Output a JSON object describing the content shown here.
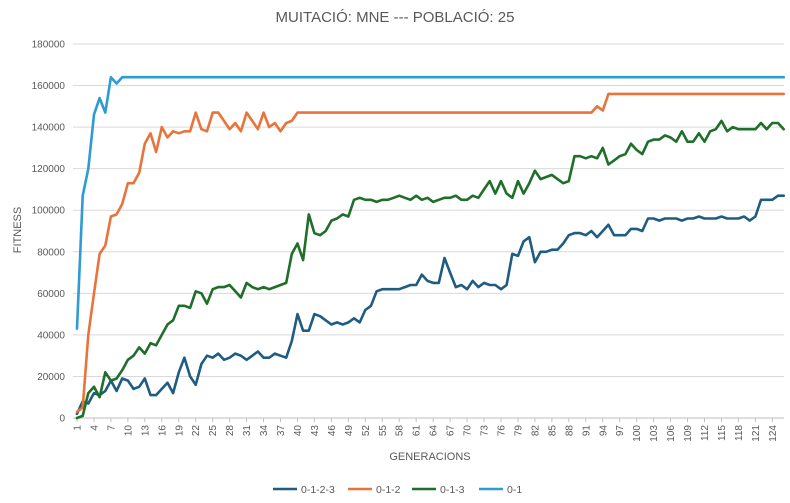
{
  "chart_data": {
    "type": "line",
    "title": "MUITACIÓ: MNE  ---  POBLACIÓ: 25",
    "xlabel": "GENERACIONS",
    "ylabel": "FITNESS",
    "ylim": [
      0,
      180000
    ],
    "yticks": [
      0,
      20000,
      40000,
      60000,
      80000,
      100000,
      120000,
      140000,
      160000,
      180000
    ],
    "ytick_labels": [
      "0",
      "20000",
      "40000",
      "60000",
      "80000",
      "100000",
      "120000",
      "140000",
      "160000",
      "180000"
    ],
    "xlim": [
      1,
      125
    ],
    "xticks": [
      1,
      4,
      7,
      10,
      13,
      16,
      19,
      22,
      25,
      28,
      31,
      34,
      37,
      40,
      43,
      46,
      49,
      52,
      55,
      58,
      61,
      64,
      67,
      70,
      73,
      76,
      79,
      82,
      85,
      88,
      91,
      94,
      97,
      100,
      103,
      106,
      109,
      112,
      115,
      118,
      121,
      124
    ],
    "grid": "horizontal",
    "legend_position": "bottom",
    "series": [
      {
        "name": "0-1-2-3",
        "color": "#1f5c82",
        "points": [
          [
            1,
            2000
          ],
          [
            2,
            8000
          ],
          [
            3,
            7000
          ],
          [
            4,
            12000
          ],
          [
            5,
            11000
          ],
          [
            6,
            13000
          ],
          [
            7,
            18000
          ],
          [
            8,
            13000
          ],
          [
            9,
            19000
          ],
          [
            10,
            18000
          ],
          [
            11,
            14000
          ],
          [
            12,
            15000
          ],
          [
            13,
            19000
          ],
          [
            14,
            11000
          ],
          [
            15,
            11000
          ],
          [
            16,
            14000
          ],
          [
            17,
            17000
          ],
          [
            18,
            12000
          ],
          [
            19,
            22000
          ],
          [
            20,
            29000
          ],
          [
            21,
            20000
          ],
          [
            22,
            16000
          ],
          [
            23,
            26000
          ],
          [
            24,
            30000
          ],
          [
            25,
            29000
          ],
          [
            26,
            31000
          ],
          [
            27,
            28000
          ],
          [
            28,
            29000
          ],
          [
            29,
            31000
          ],
          [
            30,
            30000
          ],
          [
            31,
            28000
          ],
          [
            32,
            30000
          ],
          [
            33,
            32000
          ],
          [
            34,
            29000
          ],
          [
            35,
            29000
          ],
          [
            36,
            31000
          ],
          [
            37,
            30000
          ],
          [
            38,
            29000
          ],
          [
            39,
            37000
          ],
          [
            40,
            50000
          ],
          [
            41,
            42000
          ],
          [
            42,
            42000
          ],
          [
            43,
            50000
          ],
          [
            44,
            49000
          ],
          [
            45,
            47000
          ],
          [
            46,
            45000
          ],
          [
            47,
            46000
          ],
          [
            48,
            45000
          ],
          [
            49,
            46000
          ],
          [
            50,
            48000
          ],
          [
            51,
            46000
          ],
          [
            52,
            52000
          ],
          [
            53,
            54000
          ],
          [
            54,
            61000
          ],
          [
            55,
            62000
          ],
          [
            56,
            62000
          ],
          [
            57,
            62000
          ],
          [
            58,
            62000
          ],
          [
            59,
            63000
          ],
          [
            60,
            64000
          ],
          [
            61,
            64000
          ],
          [
            62,
            69000
          ],
          [
            63,
            66000
          ],
          [
            64,
            65000
          ],
          [
            65,
            65000
          ],
          [
            66,
            77000
          ],
          [
            67,
            70000
          ],
          [
            68,
            63000
          ],
          [
            69,
            64000
          ],
          [
            70,
            62000
          ],
          [
            71,
            66000
          ],
          [
            72,
            63000
          ],
          [
            73,
            65000
          ],
          [
            74,
            64000
          ],
          [
            75,
            64000
          ],
          [
            76,
            62000
          ],
          [
            77,
            64000
          ],
          [
            78,
            79000
          ],
          [
            79,
            78000
          ],
          [
            80,
            85000
          ],
          [
            81,
            87000
          ],
          [
            82,
            75000
          ],
          [
            83,
            80000
          ],
          [
            84,
            80000
          ],
          [
            85,
            81000
          ],
          [
            86,
            81000
          ],
          [
            87,
            84000
          ],
          [
            88,
            88000
          ],
          [
            89,
            89000
          ],
          [
            90,
            89000
          ],
          [
            91,
            88000
          ],
          [
            92,
            90000
          ],
          [
            93,
            87000
          ],
          [
            94,
            90000
          ],
          [
            95,
            93000
          ],
          [
            96,
            88000
          ],
          [
            97,
            88000
          ],
          [
            98,
            88000
          ],
          [
            99,
            91000
          ],
          [
            100,
            91000
          ],
          [
            101,
            90000
          ],
          [
            102,
            96000
          ],
          [
            103,
            96000
          ],
          [
            104,
            95000
          ],
          [
            105,
            96000
          ],
          [
            106,
            96000
          ],
          [
            107,
            96000
          ],
          [
            108,
            95000
          ],
          [
            109,
            96000
          ],
          [
            110,
            96000
          ],
          [
            111,
            97000
          ],
          [
            112,
            96000
          ],
          [
            113,
            96000
          ],
          [
            114,
            96000
          ],
          [
            115,
            97000
          ],
          [
            116,
            96000
          ],
          [
            117,
            96000
          ],
          [
            118,
            96000
          ],
          [
            119,
            97000
          ],
          [
            120,
            95000
          ],
          [
            121,
            97000
          ],
          [
            122,
            105000
          ],
          [
            123,
            105000
          ],
          [
            124,
            105000
          ],
          [
            125,
            107000
          ],
          [
            126,
            107000
          ]
        ]
      },
      {
        "name": "0-1-2",
        "color": "#e8743b",
        "points": [
          [
            1,
            3000
          ],
          [
            2,
            5000
          ],
          [
            3,
            40000
          ],
          [
            4,
            60000
          ],
          [
            5,
            79000
          ],
          [
            6,
            83000
          ],
          [
            7,
            97000
          ],
          [
            8,
            98000
          ],
          [
            9,
            103000
          ],
          [
            10,
            113000
          ],
          [
            11,
            113000
          ],
          [
            12,
            118000
          ],
          [
            13,
            132000
          ],
          [
            14,
            137000
          ],
          [
            15,
            128000
          ],
          [
            16,
            140000
          ],
          [
            17,
            135000
          ],
          [
            18,
            138000
          ],
          [
            19,
            137000
          ],
          [
            20,
            138000
          ],
          [
            21,
            138000
          ],
          [
            22,
            147000
          ],
          [
            23,
            139000
          ],
          [
            24,
            138000
          ],
          [
            25,
            147000
          ],
          [
            26,
            147000
          ],
          [
            27,
            143000
          ],
          [
            28,
            139000
          ],
          [
            29,
            142000
          ],
          [
            30,
            138000
          ],
          [
            31,
            147000
          ],
          [
            32,
            143000
          ],
          [
            33,
            139000
          ],
          [
            34,
            147000
          ],
          [
            35,
            140000
          ],
          [
            36,
            142000
          ],
          [
            37,
            138000
          ],
          [
            38,
            142000
          ],
          [
            39,
            143000
          ],
          [
            40,
            147000
          ],
          [
            41,
            147000
          ],
          [
            60,
            147000
          ],
          [
            80,
            147000
          ],
          [
            92,
            147000
          ],
          [
            93,
            150000
          ],
          [
            94,
            148000
          ],
          [
            95,
            156000
          ],
          [
            126,
            156000
          ]
        ]
      },
      {
        "name": "0-1-3",
        "color": "#1f6e2a",
        "points": [
          [
            1,
            0
          ],
          [
            2,
            1000
          ],
          [
            3,
            12000
          ],
          [
            4,
            15000
          ],
          [
            5,
            10000
          ],
          [
            6,
            22000
          ],
          [
            7,
            18000
          ],
          [
            8,
            19000
          ],
          [
            9,
            23000
          ],
          [
            10,
            28000
          ],
          [
            11,
            30000
          ],
          [
            12,
            34000
          ],
          [
            13,
            31000
          ],
          [
            14,
            36000
          ],
          [
            15,
            35000
          ],
          [
            16,
            40000
          ],
          [
            17,
            45000
          ],
          [
            18,
            47000
          ],
          [
            19,
            54000
          ],
          [
            20,
            54000
          ],
          [
            21,
            53000
          ],
          [
            22,
            61000
          ],
          [
            23,
            60000
          ],
          [
            24,
            55000
          ],
          [
            25,
            62000
          ],
          [
            26,
            63000
          ],
          [
            27,
            63000
          ],
          [
            28,
            64000
          ],
          [
            29,
            61000
          ],
          [
            30,
            58000
          ],
          [
            31,
            65000
          ],
          [
            32,
            63000
          ],
          [
            33,
            62000
          ],
          [
            34,
            63000
          ],
          [
            35,
            62000
          ],
          [
            36,
            63000
          ],
          [
            37,
            64000
          ],
          [
            38,
            65000
          ],
          [
            39,
            79000
          ],
          [
            40,
            84000
          ],
          [
            41,
            76000
          ],
          [
            42,
            98000
          ],
          [
            43,
            89000
          ],
          [
            44,
            88000
          ],
          [
            45,
            90000
          ],
          [
            46,
            95000
          ],
          [
            47,
            96000
          ],
          [
            48,
            98000
          ],
          [
            49,
            97000
          ],
          [
            50,
            105000
          ],
          [
            51,
            106000
          ],
          [
            52,
            105000
          ],
          [
            53,
            105000
          ],
          [
            54,
            104000
          ],
          [
            55,
            105000
          ],
          [
            56,
            105000
          ],
          [
            57,
            106000
          ],
          [
            58,
            107000
          ],
          [
            59,
            106000
          ],
          [
            60,
            105000
          ],
          [
            61,
            107000
          ],
          [
            62,
            105000
          ],
          [
            63,
            106000
          ],
          [
            64,
            104000
          ],
          [
            65,
            105000
          ],
          [
            66,
            106000
          ],
          [
            67,
            106000
          ],
          [
            68,
            107000
          ],
          [
            69,
            105000
          ],
          [
            70,
            105000
          ],
          [
            71,
            107000
          ],
          [
            72,
            106000
          ],
          [
            73,
            110000
          ],
          [
            74,
            114000
          ],
          [
            75,
            108000
          ],
          [
            76,
            114000
          ],
          [
            77,
            108000
          ],
          [
            78,
            106000
          ],
          [
            79,
            114000
          ],
          [
            80,
            108000
          ],
          [
            81,
            113000
          ],
          [
            82,
            119000
          ],
          [
            83,
            115000
          ],
          [
            84,
            116000
          ],
          [
            85,
            117000
          ],
          [
            86,
            115000
          ],
          [
            87,
            113000
          ],
          [
            88,
            114000
          ],
          [
            89,
            126000
          ],
          [
            90,
            126000
          ],
          [
            91,
            125000
          ],
          [
            92,
            126000
          ],
          [
            93,
            125000
          ],
          [
            94,
            130000
          ],
          [
            95,
            122000
          ],
          [
            96,
            124000
          ],
          [
            97,
            126000
          ],
          [
            98,
            127000
          ],
          [
            99,
            132000
          ],
          [
            100,
            129000
          ],
          [
            101,
            127000
          ],
          [
            102,
            133000
          ],
          [
            103,
            134000
          ],
          [
            104,
            134000
          ],
          [
            105,
            136000
          ],
          [
            106,
            135000
          ],
          [
            107,
            133000
          ],
          [
            108,
            138000
          ],
          [
            109,
            133000
          ],
          [
            110,
            133000
          ],
          [
            111,
            137000
          ],
          [
            112,
            133000
          ],
          [
            113,
            138000
          ],
          [
            114,
            139000
          ],
          [
            115,
            143000
          ],
          [
            116,
            138000
          ],
          [
            117,
            140000
          ],
          [
            118,
            139000
          ],
          [
            119,
            139000
          ],
          [
            120,
            139000
          ],
          [
            121,
            139000
          ],
          [
            122,
            142000
          ],
          [
            123,
            139000
          ],
          [
            124,
            142000
          ],
          [
            125,
            142000
          ],
          [
            126,
            139000
          ]
        ]
      },
      {
        "name": "0-1",
        "color": "#2e9bd3",
        "points": [
          [
            1,
            43000
          ],
          [
            2,
            107000
          ],
          [
            3,
            120000
          ],
          [
            4,
            146000
          ],
          [
            5,
            154000
          ],
          [
            6,
            147000
          ],
          [
            7,
            164000
          ],
          [
            8,
            161000
          ],
          [
            9,
            164000
          ],
          [
            126,
            164000
          ]
        ]
      }
    ]
  }
}
